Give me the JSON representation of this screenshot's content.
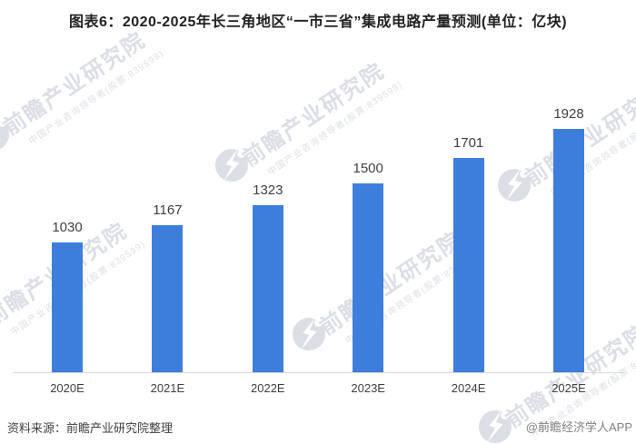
{
  "title": "图表6：2020-2025年长三角地区“一市三省”集成电路产量预测(单位：亿块)",
  "chart_data": {
    "type": "bar",
    "categories": [
      "2020E",
      "2021E",
      "2022E",
      "2023E",
      "2024E",
      "2025E"
    ],
    "values": [
      1030,
      1167,
      1323,
      1500,
      1701,
      1928
    ],
    "title": "图表6：2020-2025年长三角地区“一市三省”集成电路产量预测(单位：亿块)",
    "xlabel": "",
    "ylabel": "",
    "unit": "亿块",
    "ylim": [
      0,
      2000
    ],
    "grid": false,
    "legend": "none",
    "value_labels_shown": true,
    "bar_color": "#3d7edb"
  },
  "footer": {
    "source": "资料来源：前瞻产业研究院整理",
    "credit": "@前瞻经济学人APP"
  },
  "watermark": {
    "logo_name": "qianzhan-globe-logo",
    "text_large": "前瞻产业研究院",
    "text_small": "中国产业咨询领导者(股票:839599)",
    "color": "#aab3c2"
  },
  "colors": {
    "bar": "#3d7edb",
    "axis_line": "#d9d9d9",
    "title_text": "#222222",
    "label_text": "#404040",
    "credit_text": "#808080"
  }
}
